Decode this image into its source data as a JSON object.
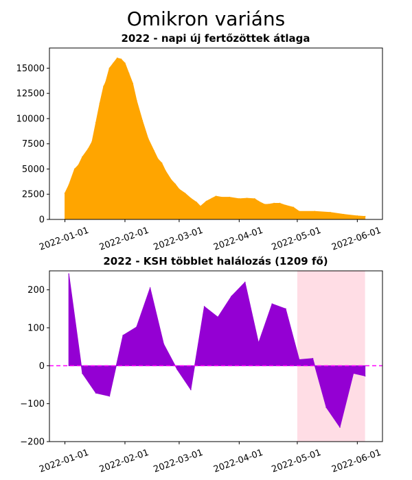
{
  "title": "Omikron variáns",
  "chart_data": [
    {
      "type": "area",
      "title": "2022 - napi új fertőzöttek átlaga",
      "color": "#ffa500",
      "xlim": [
        "2021-12-24",
        "2022-06-14"
      ],
      "ylim": [
        0,
        17000
      ],
      "y_ticks": [
        0,
        2500,
        5000,
        7500,
        10000,
        12500,
        15000
      ],
      "y_tick_labels": [
        "0",
        "2500",
        "5000",
        "7500",
        "10000",
        "12500",
        "15000"
      ],
      "x_ticks": [
        "2022-01-01",
        "2022-02-01",
        "2022-03-01",
        "2022-04-01",
        "2022-05-01",
        "2022-06-01"
      ],
      "x_tick_labels": [
        "2022-01-01",
        "2022-02-01",
        "2022-03-01",
        "2022-04-01",
        "2022-05-01",
        "2022-06-01"
      ],
      "points": [
        [
          "2022-01-01",
          2600
        ],
        [
          "2022-01-03",
          3400
        ],
        [
          "2022-01-06",
          5000
        ],
        [
          "2022-01-08",
          5400
        ],
        [
          "2022-01-10",
          6200
        ],
        [
          "2022-01-13",
          7000
        ],
        [
          "2022-01-15",
          7700
        ],
        [
          "2022-01-17",
          9600
        ],
        [
          "2022-01-19",
          11500
        ],
        [
          "2022-01-21",
          13200
        ],
        [
          "2022-01-22",
          13600
        ],
        [
          "2022-01-24",
          15000
        ],
        [
          "2022-01-26",
          15500
        ],
        [
          "2022-01-28",
          16000
        ],
        [
          "2022-01-30",
          15900
        ],
        [
          "2022-02-01",
          15500
        ],
        [
          "2022-02-03",
          14500
        ],
        [
          "2022-02-05",
          13500
        ],
        [
          "2022-02-07",
          11800
        ],
        [
          "2022-02-10",
          9800
        ],
        [
          "2022-02-13",
          8000
        ],
        [
          "2022-02-16",
          6800
        ],
        [
          "2022-02-18",
          6000
        ],
        [
          "2022-02-20",
          5600
        ],
        [
          "2022-02-22",
          4800
        ],
        [
          "2022-02-25",
          3900
        ],
        [
          "2022-02-27",
          3500
        ],
        [
          "2022-03-01",
          3000
        ],
        [
          "2022-03-04",
          2600
        ],
        [
          "2022-03-07",
          2100
        ],
        [
          "2022-03-10",
          1700
        ],
        [
          "2022-03-12",
          1300
        ],
        [
          "2022-03-15",
          1800
        ],
        [
          "2022-03-18",
          2100
        ],
        [
          "2022-03-20",
          2300
        ],
        [
          "2022-03-23",
          2200
        ],
        [
          "2022-03-27",
          2200
        ],
        [
          "2022-04-01",
          2050
        ],
        [
          "2022-04-05",
          2100
        ],
        [
          "2022-04-09",
          2050
        ],
        [
          "2022-04-11",
          1800
        ],
        [
          "2022-04-14",
          1500
        ],
        [
          "2022-04-16",
          1500
        ],
        [
          "2022-04-19",
          1600
        ],
        [
          "2022-04-22",
          1600
        ],
        [
          "2022-04-25",
          1400
        ],
        [
          "2022-04-29",
          1200
        ],
        [
          "2022-05-02",
          800
        ],
        [
          "2022-05-10",
          800
        ],
        [
          "2022-05-18",
          700
        ],
        [
          "2022-05-25",
          500
        ],
        [
          "2022-06-01",
          350
        ],
        [
          "2022-06-05",
          300
        ]
      ]
    },
    {
      "type": "area",
      "title": "2022 - KSH többlet halálozás (1209 fő)",
      "color": "#9400d3",
      "zero_line_color": "#ff00ff",
      "highlight_color": "#ffdde5",
      "highlight_range": [
        "2022-05-01",
        "2022-06-05"
      ],
      "xlim": [
        "2021-12-24",
        "2022-06-14"
      ],
      "ylim": [
        -200,
        250
      ],
      "y_ticks": [
        -200,
        -100,
        0,
        100,
        200
      ],
      "y_tick_labels": [
        "−200",
        "−100",
        "0",
        "100",
        "200"
      ],
      "x_ticks": [
        "2022-01-01",
        "2022-02-01",
        "2022-03-01",
        "2022-04-01",
        "2022-05-01",
        "2022-06-01"
      ],
      "x_tick_labels": [
        "2022-01-01",
        "2022-02-01",
        "2022-03-01",
        "2022-04-01",
        "2022-05-01",
        "2022-06-01"
      ],
      "points": [
        [
          "2022-01-03",
          242
        ],
        [
          "2022-01-10",
          -20
        ],
        [
          "2022-01-17",
          -72
        ],
        [
          "2022-01-24",
          -80
        ],
        [
          "2022-01-31",
          80
        ],
        [
          "2022-02-07",
          102
        ],
        [
          "2022-02-14",
          205
        ],
        [
          "2022-02-21",
          57
        ],
        [
          "2022-02-28",
          -10
        ],
        [
          "2022-03-07",
          -63
        ],
        [
          "2022-03-14",
          156
        ],
        [
          "2022-03-21",
          128
        ],
        [
          "2022-03-28",
          183
        ],
        [
          "2022-04-04",
          220
        ],
        [
          "2022-04-11",
          60
        ],
        [
          "2022-04-18",
          163
        ],
        [
          "2022-04-25",
          150
        ],
        [
          "2022-05-02",
          16
        ],
        [
          "2022-05-09",
          19
        ],
        [
          "2022-05-16",
          -110
        ],
        [
          "2022-05-23",
          -162
        ],
        [
          "2022-05-30",
          -20
        ],
        [
          "2022-06-05",
          -27
        ]
      ]
    }
  ]
}
